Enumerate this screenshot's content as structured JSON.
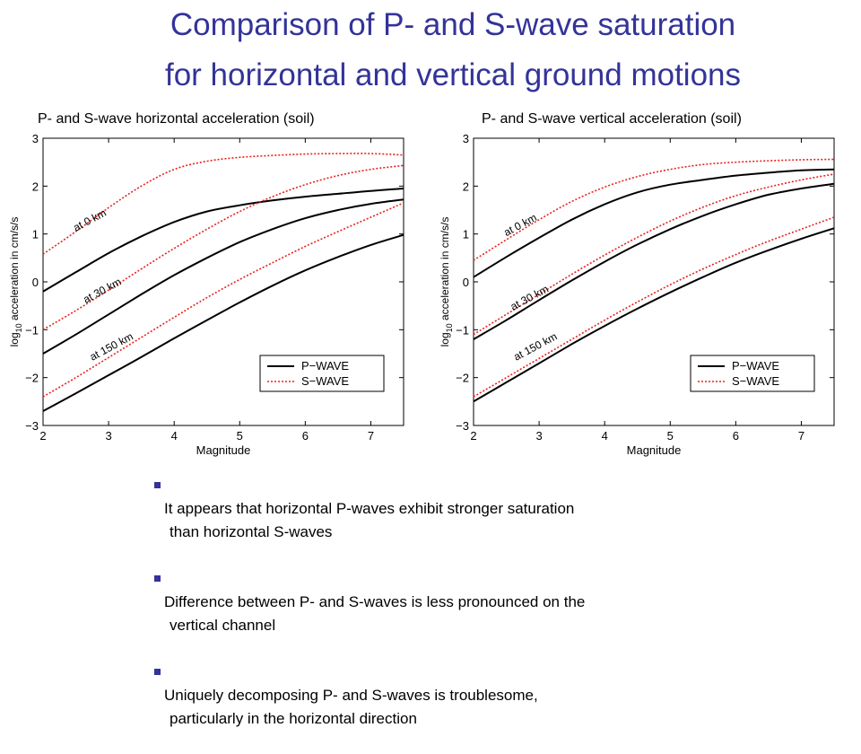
{
  "slide": {
    "title_line1": "Comparison of P- and S-wave saturation",
    "title_line2": "for horizontal and vertical ground motions",
    "accent_color": "#333399"
  },
  "bullets": [
    {
      "line1": "It appears that horizontal P-waves exhibit stronger saturation",
      "line2": "than horizontal S-waves"
    },
    {
      "line1": "Difference between P- and S-waves is less pronounced on the",
      "line2": "vertical channel"
    },
    {
      "line1": "Uniquely decomposing P- and S-waves is troublesome,",
      "line2": "particularly in the horizontal direction"
    }
  ],
  "chart_data": [
    {
      "type": "line",
      "title": "P- and S-wave horizontal acceleration (soil)",
      "xlabel": "Magnitude",
      "ylabel_prefix": "log",
      "ylabel_sub": "10",
      "ylabel_rest": " acceleration in cm/s/s",
      "xlim": [
        2,
        7.5
      ],
      "ylim": [
        -3,
        3
      ],
      "xticks": [
        2,
        3,
        4,
        5,
        6,
        7
      ],
      "yticks": [
        -3,
        -2,
        -1,
        0,
        1,
        2,
        3
      ],
      "ytick_labels": [
        "−3",
        "−2",
        "−1",
        "0",
        "1",
        "2",
        "3"
      ],
      "legend": {
        "position": "bottom-right",
        "entries": [
          "P−WAVE",
          "S−WAVE"
        ]
      },
      "colors": {
        "p_wave": "#000000",
        "s_wave": "#e8211e"
      },
      "annotations": [
        {
          "text": "at 0 km",
          "x": 2.5,
          "y": 1.05
        },
        {
          "text": "at 30 km",
          "x": 2.65,
          "y": -0.45
        },
        {
          "text": "at 150 km",
          "x": 2.75,
          "y": -1.65
        }
      ],
      "series": [
        {
          "wave": "p",
          "x": [
            2,
            2.5,
            3,
            3.5,
            4,
            4.5,
            5,
            5.5,
            6,
            6.5,
            7,
            7.5
          ],
          "values": [
            -0.2,
            0.2,
            0.6,
            0.95,
            1.25,
            1.47,
            1.6,
            1.7,
            1.78,
            1.84,
            1.9,
            1.95
          ]
        },
        {
          "wave": "s",
          "x": [
            2,
            2.5,
            3,
            3.5,
            4,
            4.5,
            5,
            5.5,
            6,
            6.5,
            7,
            7.5
          ],
          "values": [
            0.58,
            1.05,
            1.55,
            2.0,
            2.35,
            2.52,
            2.6,
            2.64,
            2.67,
            2.68,
            2.68,
            2.65
          ]
        },
        {
          "wave": "p",
          "x": [
            2,
            2.5,
            3,
            3.5,
            4,
            4.5,
            5,
            5.5,
            6,
            6.5,
            7,
            7.5
          ],
          "values": [
            -1.5,
            -1.1,
            -0.68,
            -0.26,
            0.14,
            0.5,
            0.83,
            1.1,
            1.33,
            1.5,
            1.63,
            1.72
          ]
        },
        {
          "wave": "s",
          "x": [
            2,
            2.5,
            3,
            3.5,
            4,
            4.5,
            5,
            5.5,
            6,
            6.5,
            7,
            7.5
          ],
          "values": [
            -1.0,
            -0.6,
            -0.17,
            0.27,
            0.7,
            1.1,
            1.47,
            1.78,
            2.03,
            2.22,
            2.35,
            2.43
          ]
        },
        {
          "wave": "p",
          "x": [
            2,
            2.5,
            3,
            3.5,
            4,
            4.5,
            5,
            5.5,
            6,
            6.5,
            7,
            7.5
          ],
          "values": [
            -2.7,
            -2.33,
            -1.95,
            -1.57,
            -1.18,
            -0.8,
            -0.43,
            -0.08,
            0.24,
            0.52,
            0.77,
            0.98
          ]
        },
        {
          "wave": "s",
          "x": [
            2,
            2.5,
            3,
            3.5,
            4,
            4.5,
            5,
            5.5,
            6,
            6.5,
            7,
            7.5
          ],
          "values": [
            -2.4,
            -2.0,
            -1.58,
            -1.16,
            -0.74,
            -0.33,
            0.05,
            0.4,
            0.74,
            1.05,
            1.35,
            1.65
          ]
        }
      ]
    },
    {
      "type": "line",
      "title": "P- and S-wave vertical acceleration (soil)",
      "xlabel": "Magnitude",
      "ylabel_prefix": "log",
      "ylabel_sub": "10",
      "ylabel_rest": " acceleration in cm/s/s",
      "xlim": [
        2,
        7.5
      ],
      "ylim": [
        -3,
        3
      ],
      "xticks": [
        2,
        3,
        4,
        5,
        6,
        7
      ],
      "yticks": [
        -3,
        -2,
        -1,
        0,
        1,
        2,
        3
      ],
      "ytick_labels": [
        "−3",
        "−2",
        "−1",
        "0",
        "1",
        "2",
        "3"
      ],
      "legend": {
        "position": "bottom-right",
        "entries": [
          "P−WAVE",
          "S−WAVE"
        ]
      },
      "colors": {
        "p_wave": "#000000",
        "s_wave": "#e8211e"
      },
      "annotations": [
        {
          "text": "at 0 km",
          "x": 2.5,
          "y": 0.95
        },
        {
          "text": "at 30 km",
          "x": 2.6,
          "y": -0.6
        },
        {
          "text": "at 150 km",
          "x": 2.65,
          "y": -1.65
        }
      ],
      "series": [
        {
          "wave": "p",
          "x": [
            2,
            2.5,
            3,
            3.5,
            4,
            4.5,
            5,
            5.5,
            6,
            6.5,
            7,
            7.5
          ],
          "values": [
            0.1,
            0.52,
            0.92,
            1.3,
            1.62,
            1.87,
            2.03,
            2.13,
            2.22,
            2.28,
            2.33,
            2.35
          ]
        },
        {
          "wave": "s",
          "x": [
            2,
            2.5,
            3,
            3.5,
            4,
            4.5,
            5,
            5.5,
            6,
            6.5,
            7,
            7.5
          ],
          "values": [
            0.45,
            0.88,
            1.3,
            1.68,
            1.98,
            2.2,
            2.35,
            2.45,
            2.5,
            2.53,
            2.55,
            2.56
          ]
        },
        {
          "wave": "p",
          "x": [
            2,
            2.5,
            3,
            3.5,
            4,
            4.5,
            5,
            5.5,
            6,
            6.5,
            7,
            7.5
          ],
          "values": [
            -1.2,
            -0.8,
            -0.38,
            0.03,
            0.42,
            0.78,
            1.1,
            1.38,
            1.62,
            1.82,
            1.95,
            2.05
          ]
        },
        {
          "wave": "s",
          "x": [
            2,
            2.5,
            3,
            3.5,
            4,
            4.5,
            5,
            5.5,
            6,
            6.5,
            7,
            7.5
          ],
          "values": [
            -1.1,
            -0.68,
            -0.26,
            0.16,
            0.56,
            0.93,
            1.27,
            1.56,
            1.8,
            1.98,
            2.13,
            2.25
          ]
        },
        {
          "wave": "p",
          "x": [
            2,
            2.5,
            3,
            3.5,
            4,
            4.5,
            5,
            5.5,
            6,
            6.5,
            7,
            7.5
          ],
          "values": [
            -2.5,
            -2.1,
            -1.7,
            -1.3,
            -0.92,
            -0.56,
            -0.22,
            0.1,
            0.4,
            0.66,
            0.9,
            1.12
          ]
        },
        {
          "wave": "s",
          "x": [
            2,
            2.5,
            3,
            3.5,
            4,
            4.5,
            5,
            5.5,
            6,
            6.5,
            7,
            7.5
          ],
          "values": [
            -2.4,
            -2.0,
            -1.6,
            -1.2,
            -0.8,
            -0.42,
            -0.06,
            0.27,
            0.57,
            0.85,
            1.1,
            1.35
          ]
        }
      ]
    }
  ]
}
